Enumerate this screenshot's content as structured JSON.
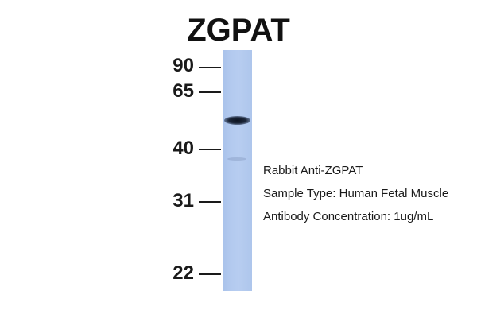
{
  "title": "ZGPAT",
  "markers": [
    {
      "label": "90"
    },
    {
      "label": "65"
    },
    {
      "label": "40"
    },
    {
      "label": "31"
    },
    {
      "label": "22"
    }
  ],
  "info": {
    "antibody": "Rabbit Anti-ZGPAT",
    "sample_type": "Sample Type: Human Fetal Muscle",
    "concentration": "Antibody Concentration: 1ug/mL"
  },
  "colors": {
    "lane": "#b3caef",
    "band": "#151c2b",
    "text": "#1a1a1a"
  }
}
